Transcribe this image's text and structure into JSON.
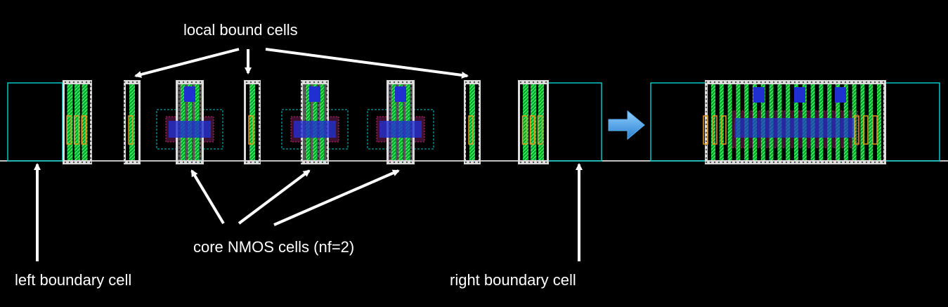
{
  "labels": {
    "local_bound_cells": "local bound cells",
    "core_nmos_cells": "core NMOS cells (nf=2)",
    "left_boundary_cell": "left boundary cell",
    "right_boundary_cell": "right boundary cell"
  },
  "colors": {
    "background": "#000000",
    "boundary_outline": "#00c8c8",
    "baseline": "#ffffff",
    "poly_green": "#2fbf2f",
    "diffusion_orange": "#e89a20",
    "metal_blue": "#2030d0",
    "implant_red": "#c03060",
    "arrow_white": "#ffffff",
    "transition_arrow": "#4aa0e0"
  }
}
